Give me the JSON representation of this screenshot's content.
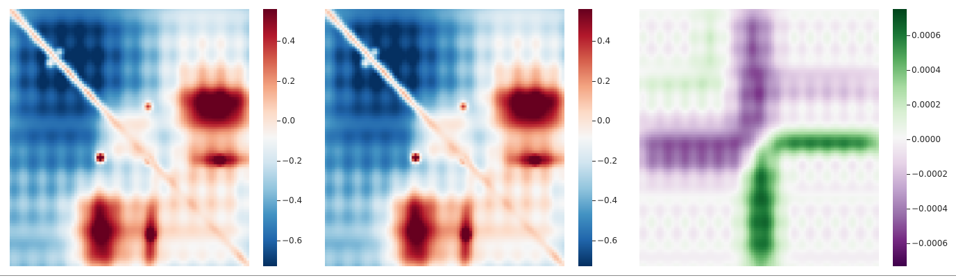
{
  "chart_data": [
    {
      "type": "heatmap",
      "colormap": "RdBu_r",
      "colorbar_range": [
        -0.73,
        0.56
      ],
      "colorbar_ticks": [
        0.4,
        0.2,
        0.0,
        -0.2,
        -0.4,
        -0.6
      ],
      "colorbar_tick_labels": [
        "0.4",
        "0.2",
        "0.0",
        "−0.2",
        "−0.4",
        "−0.6"
      ]
    },
    {
      "type": "heatmap",
      "colormap": "RdBu_r",
      "colorbar_range": [
        -0.73,
        0.56
      ],
      "colorbar_ticks": [
        0.4,
        0.2,
        0.0,
        -0.2,
        -0.4,
        -0.6
      ],
      "colorbar_tick_labels": [
        "0.4",
        "0.2",
        "0.0",
        "−0.2",
        "−0.4",
        "−0.6"
      ]
    },
    {
      "type": "heatmap",
      "colormap": "PRGn",
      "colorbar_range": [
        -0.00073,
        0.00075
      ],
      "colorbar_ticks": [
        0.0006,
        0.0004,
        0.0002,
        0.0,
        -0.0002,
        -0.0004,
        -0.0006
      ],
      "colorbar_tick_labels": [
        "0.0006",
        "0.0004",
        "0.0002",
        "0.0000",
        "−0.0002",
        "−0.0004",
        "−0.0006"
      ]
    }
  ],
  "colors": {
    "rdbu": [
      "#053061",
      "#2166ac",
      "#4393c3",
      "#92c5de",
      "#d1e5f0",
      "#f7f7f7",
      "#fddbc7",
      "#f4a582",
      "#d6604d",
      "#b2182b",
      "#67001f"
    ],
    "prgn": [
      "#40004b",
      "#762a83",
      "#9970ab",
      "#c2a5cf",
      "#e7d4e8",
      "#f7f7f7",
      "#d9f0d3",
      "#a6dba0",
      "#5aae61",
      "#1b7837",
      "#00441b"
    ],
    "tick": "#262626",
    "rule": "#8a8a8a"
  }
}
